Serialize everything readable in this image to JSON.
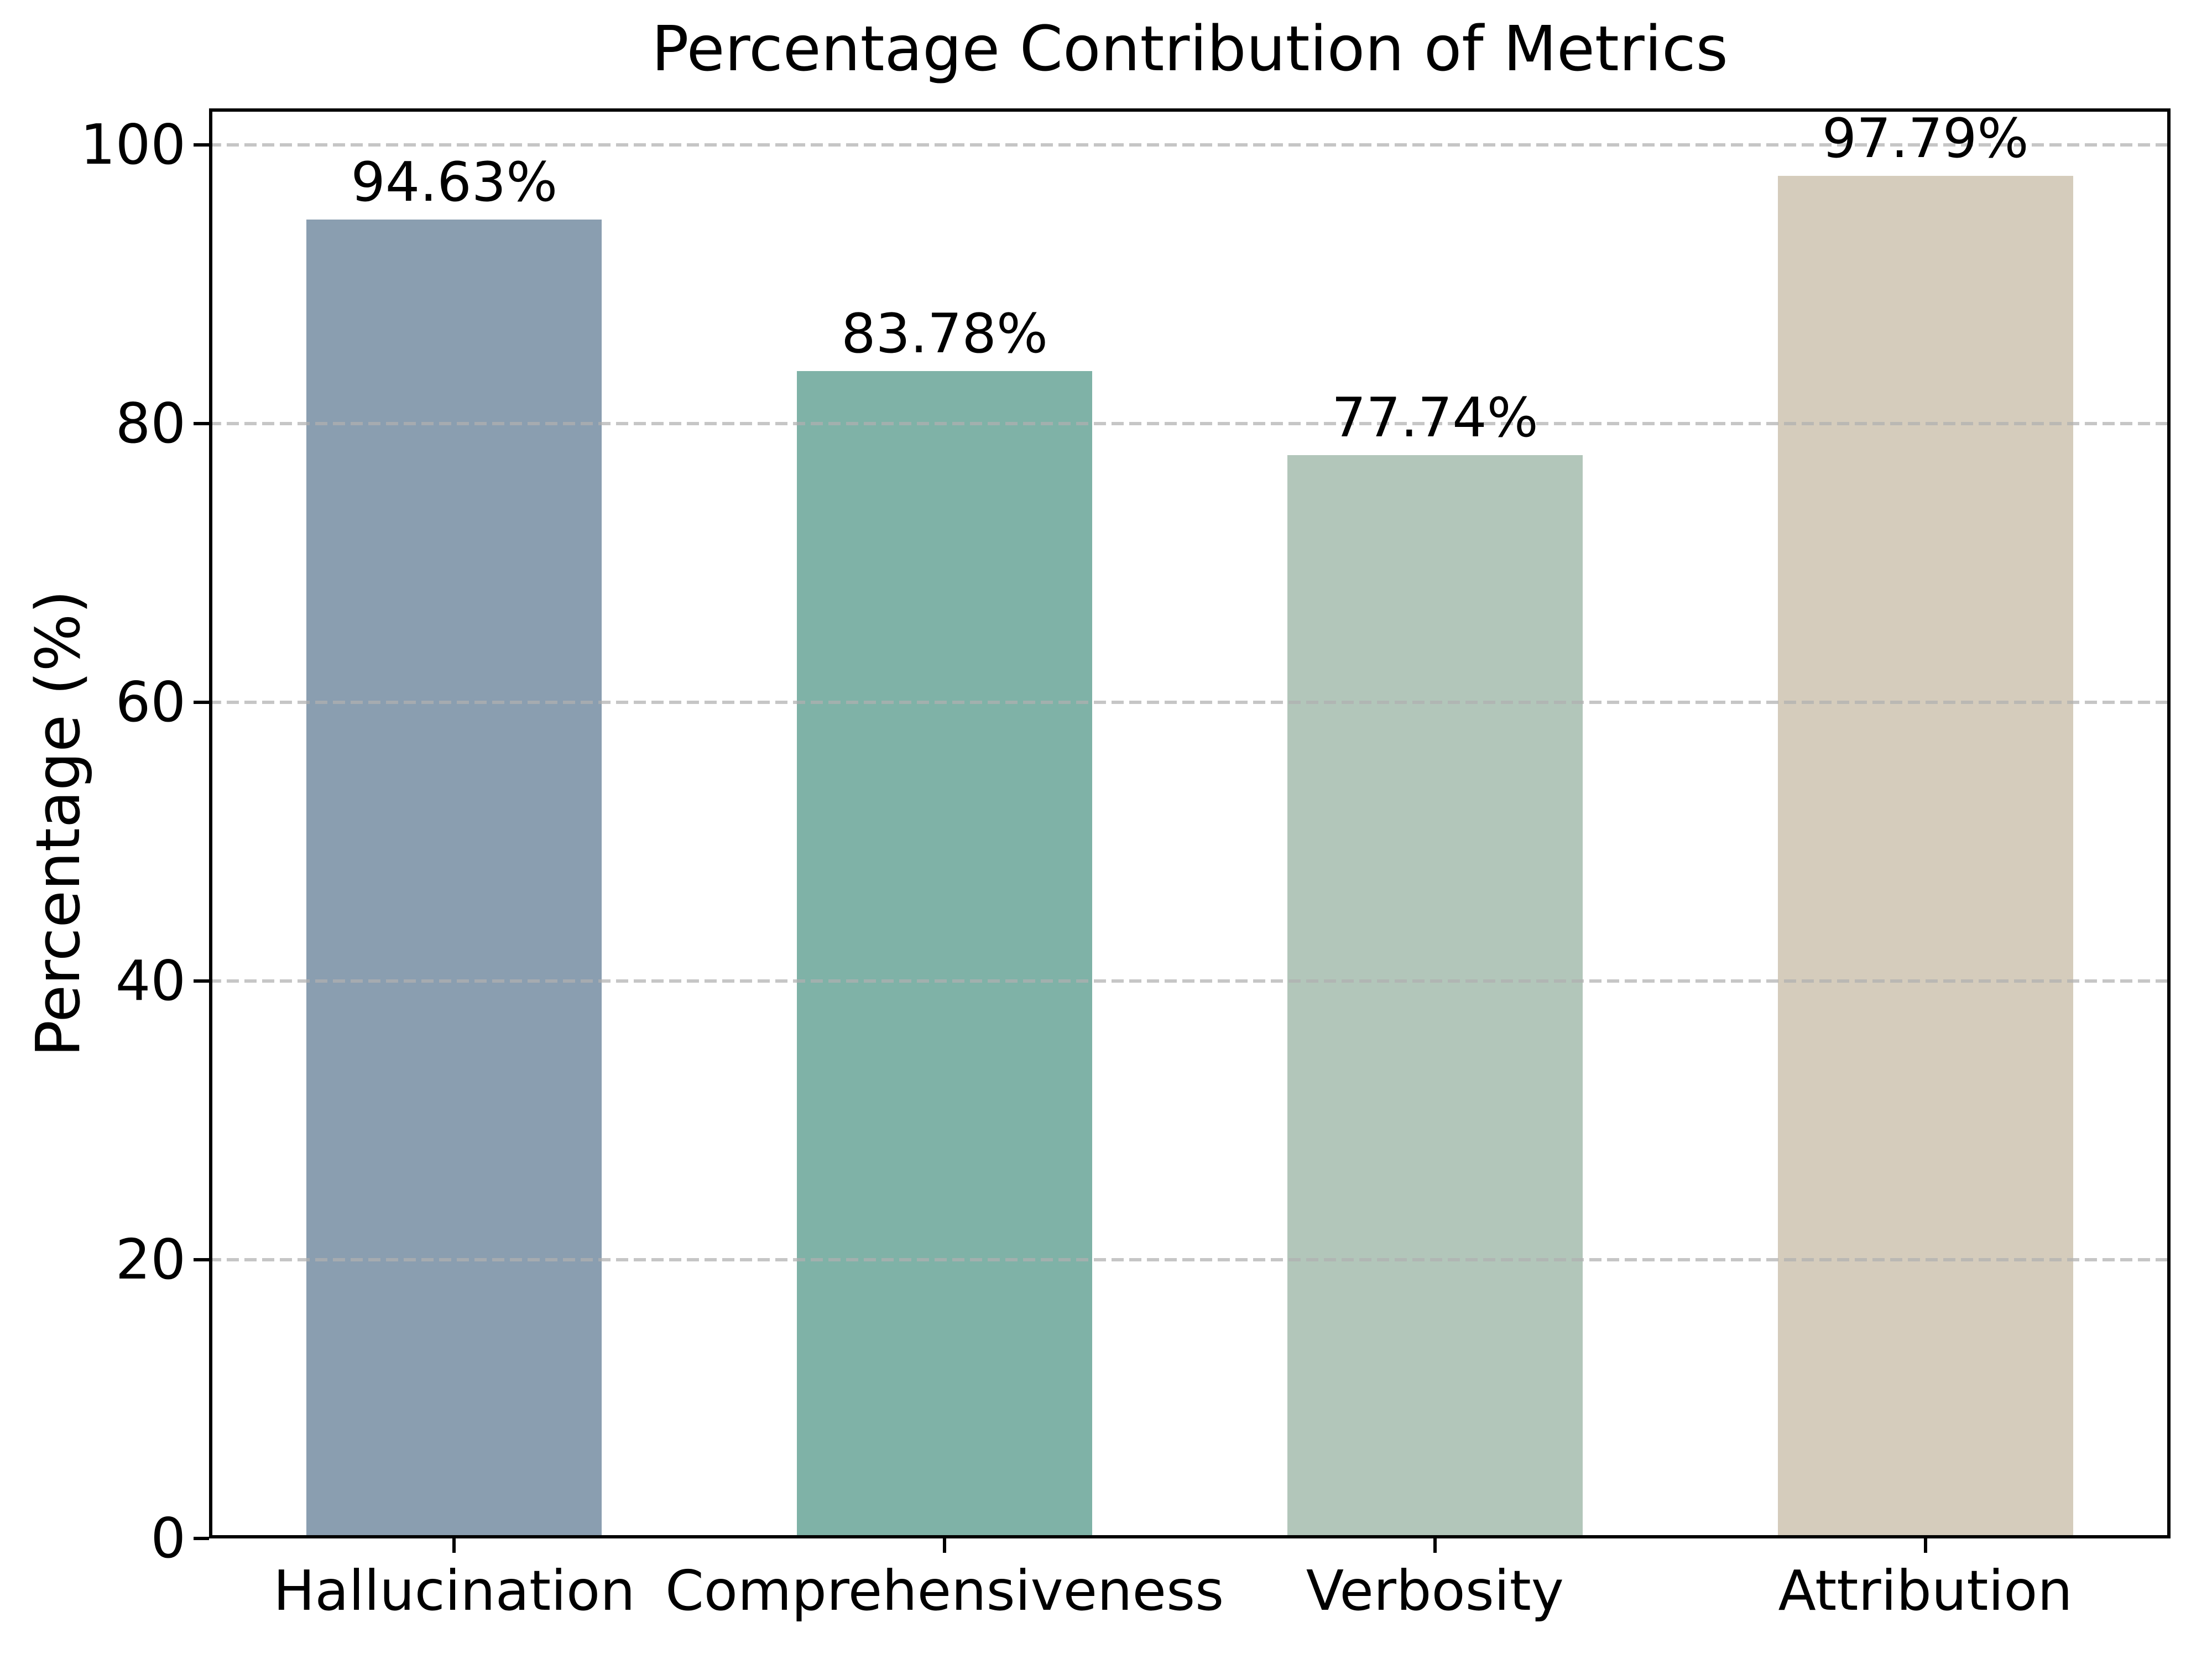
{
  "chart_data": {
    "type": "bar",
    "title": "Percentage Contribution of Metrics",
    "ylabel": "Percentage (%)",
    "xlabel": "",
    "categories": [
      "Hallucination",
      "Comprehensiveness",
      "Verbosity",
      "Attribution"
    ],
    "values": [
      94.63,
      83.78,
      77.74,
      97.79
    ],
    "value_labels": [
      "94.63%",
      "83.78%",
      "77.74%",
      "97.79%"
    ],
    "bar_colors": [
      "#8a9eb0",
      "#7fb2a7",
      "#b2c6ba",
      "#d5ccbc"
    ],
    "yticks": [
      0,
      20,
      40,
      60,
      80,
      100
    ],
    "ytick_labels": [
      "0",
      "20",
      "40",
      "60",
      "80",
      "100"
    ],
    "ylim": [
      0,
      102.6
    ],
    "grid": {
      "axis": "y",
      "style": "dashed",
      "color": "#b0b0b0",
      "alpha": 0.7
    },
    "legend": null,
    "spine_color": "#000000",
    "text_color": "#000000",
    "background_color": "#ffffff"
  }
}
